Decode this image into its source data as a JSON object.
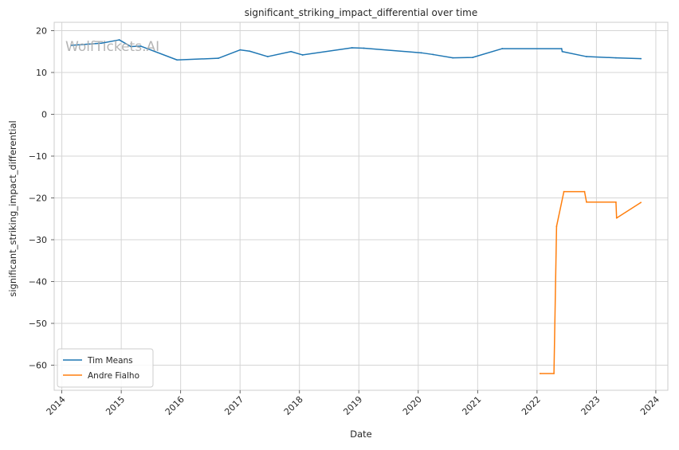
{
  "chart_data": {
    "type": "line",
    "title": "significant_striking_impact_differential over time",
    "xlabel": "Date",
    "ylabel": "significant_striking_impact_differential",
    "watermark": "WolfTickets.AI",
    "x_ticks": [
      "2014",
      "2015",
      "2016",
      "2017",
      "2018",
      "2019",
      "2020",
      "2021",
      "2022",
      "2023",
      "2024"
    ],
    "y_ticks": [
      20,
      10,
      0,
      -10,
      -20,
      -30,
      -40,
      -50,
      -60
    ],
    "xlim": [
      "2013-11-15",
      "2024-03-15"
    ],
    "ylim": [
      -66,
      22
    ],
    "grid": true,
    "legend_position": "lower-left",
    "series": [
      {
        "name": "Tim Means",
        "color": "#1f77b4",
        "points": [
          [
            "2014-03-01",
            16.5
          ],
          [
            "2014-09-01",
            17.0
          ],
          [
            "2014-12-20",
            17.8
          ],
          [
            "2015-03-01",
            16.2
          ],
          [
            "2015-05-01",
            16.3
          ],
          [
            "2015-12-10",
            13.0
          ],
          [
            "2016-08-20",
            13.4
          ],
          [
            "2017-01-01",
            15.4
          ],
          [
            "2017-03-01",
            15.1
          ],
          [
            "2017-06-20",
            13.8
          ],
          [
            "2017-11-10",
            15.0
          ],
          [
            "2018-01-20",
            14.2
          ],
          [
            "2018-11-20",
            15.9
          ],
          [
            "2019-02-01",
            15.8
          ],
          [
            "2020-01-20",
            14.7
          ],
          [
            "2020-04-01",
            14.3
          ],
          [
            "2020-08-01",
            13.5
          ],
          [
            "2020-12-01",
            13.6
          ],
          [
            "2021-06-01",
            15.7
          ],
          [
            "2022-06-01",
            15.7
          ],
          [
            "2022-06-05",
            15.0
          ],
          [
            "2022-11-01",
            13.8
          ],
          [
            "2023-05-01",
            13.5
          ],
          [
            "2023-10-01",
            13.3
          ]
        ]
      },
      {
        "name": "Andre Fialho",
        "color": "#ff7f0e",
        "points": [
          [
            "2022-01-20",
            -62.0
          ],
          [
            "2022-04-15",
            -62.0
          ],
          [
            "2022-05-01",
            -26.8
          ],
          [
            "2022-06-15",
            -18.5
          ],
          [
            "2022-10-20",
            -18.5
          ],
          [
            "2022-11-01",
            -21.0
          ],
          [
            "2023-05-01",
            -21.0
          ],
          [
            "2023-05-05",
            -24.8
          ],
          [
            "2023-10-01",
            -21.1
          ]
        ]
      }
    ]
  }
}
